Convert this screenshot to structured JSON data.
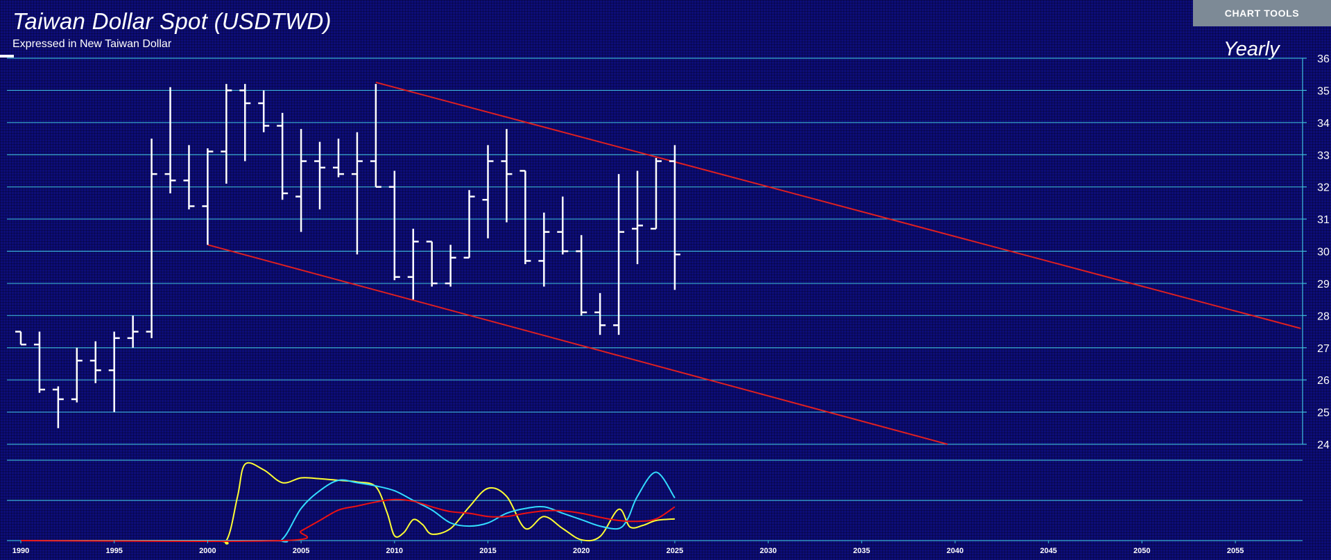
{
  "header": {
    "title": "Taiwan Dollar Spot (USDTWD)",
    "subtitle": "Expressed in New Taiwan Dollar",
    "period": "Yearly"
  },
  "toolbar": {
    "chart_tools_label": "CHART TOOLS"
  },
  "colors": {
    "background": "#0d0d78",
    "gridline": "#3fc1dc",
    "bars": "#ffffff",
    "trendline": "#e02020",
    "osc_yellow": "#ffff33",
    "osc_cyan": "#33ddff",
    "osc_red": "#ee1111"
  },
  "chart_data": [
    {
      "type": "ohlc",
      "frequency": "yearly",
      "title": "Taiwan Dollar Spot (USDTWD)",
      "subtitle": "Expressed in New Taiwan Dollar",
      "ylim": [
        24,
        36
      ],
      "y_ticks": [
        "24",
        "25",
        "26",
        "27",
        "28",
        "29",
        "30",
        "31",
        "32",
        "33",
        "34",
        "35",
        "36"
      ],
      "xlim": [
        1989.5,
        2059.5
      ],
      "x_ticks": [
        "1990",
        "1995",
        "2000",
        "2005",
        "2010",
        "2015",
        "2020",
        "2025",
        "2030",
        "2035",
        "2040",
        "2045",
        "2050",
        "2055"
      ],
      "grid": true,
      "bars": [
        {
          "x": 1990,
          "open": 27.5,
          "high": 27.5,
          "low": 27.1,
          "close": 27.1
        },
        {
          "x": 1991,
          "open": 27.1,
          "high": 27.5,
          "low": 25.6,
          "close": 25.7
        },
        {
          "x": 1992,
          "open": 25.7,
          "high": 25.8,
          "low": 24.5,
          "close": 25.4
        },
        {
          "x": 1993,
          "open": 25.4,
          "high": 27.0,
          "low": 25.3,
          "close": 26.6
        },
        {
          "x": 1994,
          "open": 26.6,
          "high": 27.2,
          "low": 25.9,
          "close": 26.3
        },
        {
          "x": 1995,
          "open": 26.3,
          "high": 27.5,
          "low": 25.0,
          "close": 27.3
        },
        {
          "x": 1996,
          "open": 27.3,
          "high": 28.0,
          "low": 27.0,
          "close": 27.5
        },
        {
          "x": 1997,
          "open": 27.5,
          "high": 33.5,
          "low": 27.3,
          "close": 32.4
        },
        {
          "x": 1998,
          "open": 32.4,
          "high": 35.1,
          "low": 31.8,
          "close": 32.2
        },
        {
          "x": 1999,
          "open": 32.2,
          "high": 33.3,
          "low": 31.3,
          "close": 31.4
        },
        {
          "x": 2000,
          "open": 31.4,
          "high": 33.2,
          "low": 30.2,
          "close": 33.1
        },
        {
          "x": 2001,
          "open": 33.1,
          "high": 35.2,
          "low": 32.1,
          "close": 35.0
        },
        {
          "x": 2002,
          "open": 35.0,
          "high": 35.2,
          "low": 32.8,
          "close": 34.6
        },
        {
          "x": 2003,
          "open": 34.6,
          "high": 35.0,
          "low": 33.7,
          "close": 33.9
        },
        {
          "x": 2004,
          "open": 33.9,
          "high": 34.3,
          "low": 31.6,
          "close": 31.8
        },
        {
          "x": 2005,
          "open": 31.7,
          "high": 33.8,
          "low": 30.6,
          "close": 32.8
        },
        {
          "x": 2006,
          "open": 32.8,
          "high": 33.4,
          "low": 31.3,
          "close": 32.6
        },
        {
          "x": 2007,
          "open": 32.6,
          "high": 33.5,
          "low": 32.3,
          "close": 32.4
        },
        {
          "x": 2008,
          "open": 32.4,
          "high": 33.7,
          "low": 29.9,
          "close": 32.8
        },
        {
          "x": 2009,
          "open": 32.8,
          "high": 35.2,
          "low": 32.0,
          "close": 32.0
        },
        {
          "x": 2010,
          "open": 32.0,
          "high": 32.5,
          "low": 29.1,
          "close": 29.2
        },
        {
          "x": 2011,
          "open": 29.2,
          "high": 30.7,
          "low": 28.5,
          "close": 30.3
        },
        {
          "x": 2012,
          "open": 30.3,
          "high": 30.3,
          "low": 28.9,
          "close": 29.0
        },
        {
          "x": 2013,
          "open": 29.0,
          "high": 30.2,
          "low": 28.9,
          "close": 29.8
        },
        {
          "x": 2014,
          "open": 29.8,
          "high": 31.9,
          "low": 29.8,
          "close": 31.7
        },
        {
          "x": 2015,
          "open": 31.6,
          "high": 33.3,
          "low": 30.4,
          "close": 32.8
        },
        {
          "x": 2016,
          "open": 32.8,
          "high": 33.8,
          "low": 30.9,
          "close": 32.4
        },
        {
          "x": 2017,
          "open": 32.5,
          "high": 32.5,
          "low": 29.6,
          "close": 29.7
        },
        {
          "x": 2018,
          "open": 29.7,
          "high": 31.2,
          "low": 28.9,
          "close": 30.6
        },
        {
          "x": 2019,
          "open": 30.6,
          "high": 31.7,
          "low": 29.9,
          "close": 30.0
        },
        {
          "x": 2020,
          "open": 30.0,
          "high": 30.5,
          "low": 28.0,
          "close": 28.1
        },
        {
          "x": 2021,
          "open": 28.1,
          "high": 28.7,
          "low": 27.4,
          "close": 27.7
        },
        {
          "x": 2022,
          "open": 27.7,
          "high": 32.4,
          "low": 27.4,
          "close": 30.6
        },
        {
          "x": 2023,
          "open": 30.7,
          "high": 32.5,
          "low": 29.6,
          "close": 30.8
        },
        {
          "x": 2024,
          "open": 30.7,
          "high": 32.9,
          "low": 30.7,
          "close": 32.8
        },
        {
          "x": 2025,
          "open": 32.8,
          "high": 33.3,
          "low": 28.8,
          "close": 29.9
        }
      ],
      "trendlines": [
        {
          "from": [
            2009,
            35.25
          ],
          "to": [
            2058.5,
            27.6
          ]
        },
        {
          "from": [
            2000,
            30.2
          ],
          "to": [
            2039.6,
            24.0
          ]
        }
      ]
    },
    {
      "type": "line",
      "panel": "oscillator",
      "ylim": [
        0,
        100
      ],
      "series": [
        {
          "color": "yellow",
          "points": [
            [
              1990,
              0
            ],
            [
              2000,
              0
            ],
            [
              2001,
              0
            ],
            [
              2001.6,
              55
            ],
            [
              2002,
              95
            ],
            [
              2003,
              88
            ],
            [
              2004,
              72
            ],
            [
              2005,
              78
            ],
            [
              2006,
              77
            ],
            [
              2007,
              75
            ],
            [
              2008,
              73
            ],
            [
              2009,
              67
            ],
            [
              2009.6,
              35
            ],
            [
              2010,
              6
            ],
            [
              2010.5,
              10
            ],
            [
              2011,
              26
            ],
            [
              2011.5,
              20
            ],
            [
              2012,
              8
            ],
            [
              2013,
              15
            ],
            [
              2014,
              42
            ],
            [
              2015,
              65
            ],
            [
              2016,
              55
            ],
            [
              2017,
              15
            ],
            [
              2018,
              30
            ],
            [
              2019,
              15
            ],
            [
              2020,
              1
            ],
            [
              2021,
              5
            ],
            [
              2022,
              39
            ],
            [
              2022.6,
              17
            ],
            [
              2023.3,
              19
            ],
            [
              2024,
              25
            ],
            [
              2025,
              27
            ]
          ]
        },
        {
          "color": "cyan",
          "points": [
            [
              1990,
              0
            ],
            [
              2003,
              0
            ],
            [
              2004,
              2
            ],
            [
              2005,
              40
            ],
            [
              2006,
              62
            ],
            [
              2007,
              75
            ],
            [
              2008,
              72
            ],
            [
              2009,
              68
            ],
            [
              2010,
              62
            ],
            [
              2011,
              50
            ],
            [
              2012,
              38
            ],
            [
              2013,
              22
            ],
            [
              2014,
              18
            ],
            [
              2015,
              22
            ],
            [
              2016,
              34
            ],
            [
              2017,
              40
            ],
            [
              2018,
              42
            ],
            [
              2019,
              34
            ],
            [
              2020,
              26
            ],
            [
              2021,
              18
            ],
            [
              2022,
              15
            ],
            [
              2022.5,
              28
            ],
            [
              2023,
              55
            ],
            [
              2024,
              85
            ],
            [
              2025,
              53
            ]
          ]
        },
        {
          "color": "red",
          "points": [
            [
              1990,
              0
            ],
            [
              2004,
              0
            ],
            [
              2005,
              12
            ],
            [
              2006,
              25
            ],
            [
              2007,
              38
            ],
            [
              2008,
              43
            ],
            [
              2009,
              48
            ],
            [
              2010,
              51
            ],
            [
              2011,
              49
            ],
            [
              2012,
              42
            ],
            [
              2013,
              36
            ],
            [
              2014,
              34
            ],
            [
              2015,
              30
            ],
            [
              2016,
              30
            ],
            [
              2017,
              34
            ],
            [
              2018,
              37
            ],
            [
              2019,
              37
            ],
            [
              2020,
              34
            ],
            [
              2021,
              29
            ],
            [
              2022,
              25
            ],
            [
              2023,
              24
            ],
            [
              2024,
              27
            ],
            [
              2025,
              42
            ]
          ]
        }
      ]
    }
  ]
}
